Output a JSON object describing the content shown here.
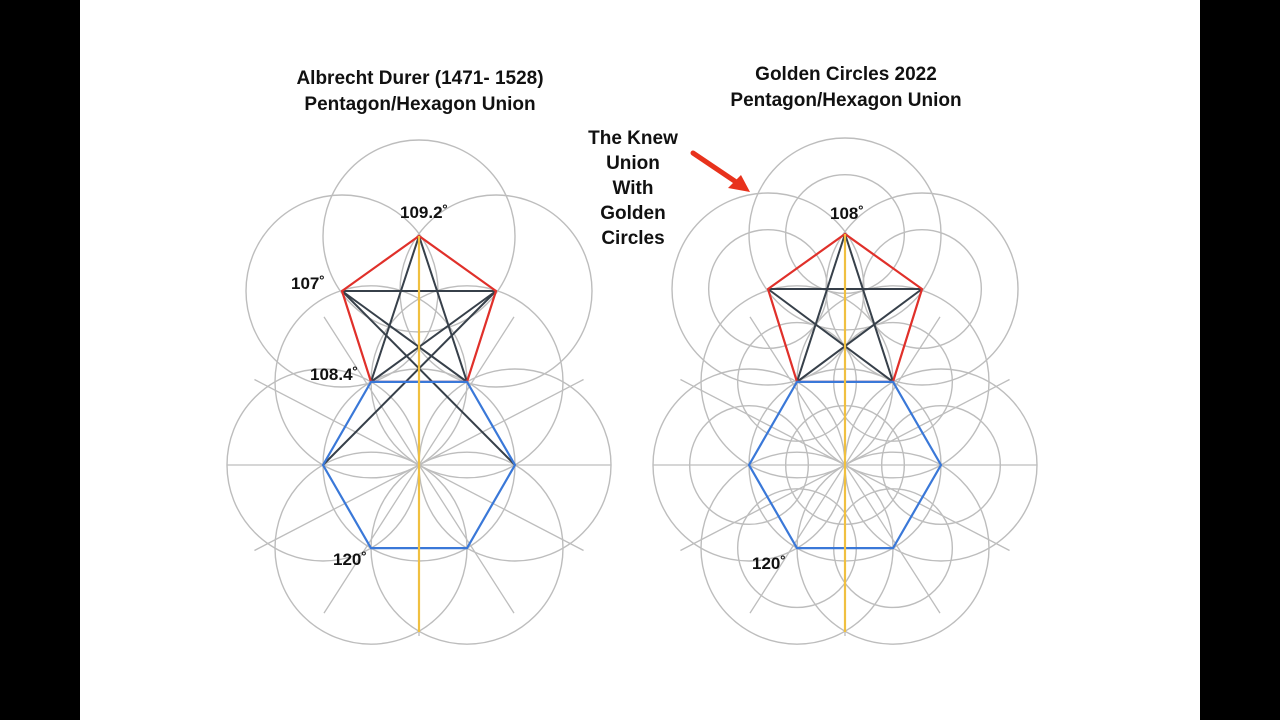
{
  "left_diagram": {
    "title_line1": "Albrecht Durer  (1471- 1528)",
    "title_line2": "Pentagon/Hexagon Union",
    "angles": [
      "109.2˚",
      "107˚",
      "108.4˚",
      "120˚"
    ]
  },
  "right_diagram": {
    "title_line1": "Golden Circles 2022",
    "title_line2": "Pentagon/Hexagon Union",
    "angles": [
      "108˚",
      "120˚"
    ]
  },
  "annotation": {
    "lines": [
      "The Knew",
      "Union",
      "With",
      "Golden",
      "Circles"
    ]
  },
  "colors": {
    "pentagon": "#e0302a",
    "hexagon": "#3a78d8",
    "star": "#37404a",
    "axis": "#f0c040",
    "circles": "#bdbdbd",
    "arrow": "#e8321c"
  }
}
